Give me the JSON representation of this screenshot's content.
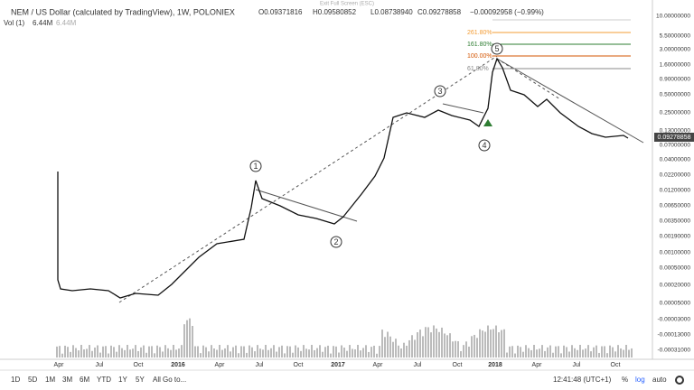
{
  "header": {
    "symbol": "NEM / US Dollar (calculated by TradingView), 1W, POLONIEX",
    "ohlc": [
      "O0.09371816",
      "H0.09580852",
      "L0.08738940",
      "C0.09278858",
      "−0.00092958 (−0.99%)"
    ],
    "exit": "Exit Full Screen (ESC)"
  },
  "volume": {
    "label": "Vol (1)",
    "values": [
      "6.44M",
      "6.44M"
    ]
  },
  "price_axis": [
    "10.00000000",
    "5.50000000",
    "3.00000000",
    "1.60000000",
    "0.90000000",
    "0.50000000",
    "0.25000000",
    "0.13000000",
    "0.07000000",
    "0.04000000",
    "0.02200000",
    "0.01200000",
    "0.00650000",
    "0.00350000",
    "0.00190000",
    "0.00100000",
    "0.00050000",
    "0.00020000",
    "0.00005000",
    "-0.00003000",
    "-0.00013000",
    "-0.00031000"
  ],
  "current_price": "0.09278858",
  "time_axis": [
    "Apr",
    "Jul",
    "Oct",
    "2016",
    "Apr",
    "Jul",
    "Oct",
    "2017",
    "Apr",
    "Jul",
    "Oct",
    "2018",
    "Apr",
    "Jul",
    "Oct"
  ],
  "fib_levels": [
    "261.80%",
    "161.80%",
    "100.00%",
    "61.80%"
  ],
  "waves": [
    "1",
    "2",
    "3",
    "4",
    "5"
  ],
  "toolbar": {
    "ranges": [
      "1D",
      "5D",
      "1M",
      "3M",
      "6M",
      "YTD",
      "1Y",
      "5Y",
      "All"
    ],
    "goto": "Go to...",
    "clock": "12:41:48 (UTC+1)",
    "options": [
      "%",
      "log",
      "auto"
    ]
  }
}
